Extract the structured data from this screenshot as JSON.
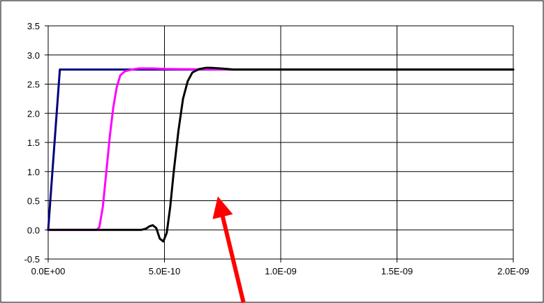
{
  "chart_data": {
    "type": "line",
    "title": "",
    "xlabel": "",
    "ylabel": "",
    "xlim": [
      0,
      2e-09
    ],
    "ylim": [
      -0.5,
      3.5
    ],
    "x_tick_values": [
      0,
      5e-10,
      1e-09,
      1.5e-09,
      2e-09
    ],
    "x_tick_labels": [
      "0.0E+00",
      "5.0E-10",
      "1.0E-09",
      "1.5E-09",
      "2.0E-09"
    ],
    "y_tick_values": [
      -0.5,
      0.0,
      0.5,
      1.0,
      1.5,
      2.0,
      2.5,
      3.0,
      3.5
    ],
    "y_tick_labels": [
      "-0.5",
      "0.0",
      "0.5",
      "1.0",
      "1.5",
      "2.0",
      "2.5",
      "3.0",
      "3.5"
    ],
    "grid": true,
    "legend": "none",
    "series": [
      {
        "color": "#000080",
        "x": [
          0,
          5e-11,
          2e-09
        ],
        "y": [
          0.0,
          2.75,
          2.75
        ]
      },
      {
        "color": "#ff00ff",
        "x": [
          0,
          2.1e-10,
          2.2e-10,
          2.35e-10,
          2.5e-10,
          2.65e-10,
          2.8e-10,
          2.95e-10,
          3.1e-10,
          3.3e-10,
          3.6e-10,
          3.9e-10,
          4.5e-10,
          5e-10,
          8e-10
        ],
        "y": [
          0.0,
          0.0,
          0.05,
          0.4,
          1.0,
          1.6,
          2.1,
          2.45,
          2.65,
          2.72,
          2.75,
          2.77,
          2.77,
          2.76,
          2.75
        ]
      },
      {
        "color": "#000000",
        "x": [
          0,
          4e-10,
          4.2e-10,
          4.35e-10,
          4.5e-10,
          4.65e-10,
          4.8e-10,
          4.95e-10,
          5.1e-10,
          5.25e-10,
          5.4e-10,
          5.6e-10,
          5.8e-10,
          6e-10,
          6.2e-10,
          6.5e-10,
          6.8e-10,
          7e-10,
          7.4e-10,
          8e-10,
          2e-09
        ],
        "y": [
          0.0,
          0.0,
          0.02,
          0.06,
          0.08,
          0.03,
          -0.15,
          -0.2,
          -0.05,
          0.4,
          1.0,
          1.7,
          2.25,
          2.55,
          2.7,
          2.76,
          2.78,
          2.78,
          2.77,
          2.75,
          2.75
        ]
      }
    ],
    "annotations": [
      {
        "type": "arrow",
        "color": "#ff0000",
        "from": [
          8.4e-10,
          -1.25
        ],
        "to": [
          7.4e-10,
          0.4
        ]
      }
    ]
  }
}
